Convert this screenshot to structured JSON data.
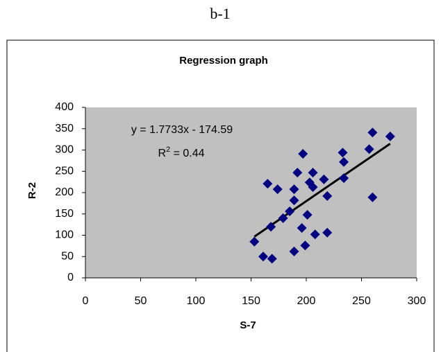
{
  "caption": "b-1",
  "chart_data": {
    "type": "scatter",
    "title": "Regression graph",
    "x_label": "S-7",
    "y_label": "R-2",
    "x": [
      153,
      161,
      165,
      168,
      169,
      174,
      179,
      185,
      189,
      189,
      189,
      192,
      196,
      197,
      199,
      201,
      203,
      206,
      206,
      208,
      216,
      219,
      219,
      233,
      234,
      234,
      257,
      260,
      260,
      276
    ],
    "values": [
      85,
      50,
      221,
      120,
      45,
      208,
      140,
      156,
      182,
      208,
      62,
      247,
      117,
      291,
      76,
      148,
      224,
      213,
      247,
      102,
      231,
      192,
      106,
      294,
      272,
      234,
      302,
      341,
      189,
      332
    ],
    "color": "#000080",
    "xlim": [
      0,
      300
    ],
    "xticks": [
      0,
      50,
      100,
      150,
      200,
      250,
      300
    ],
    "ylim": [
      0,
      400
    ],
    "yticks": [
      0,
      50,
      100,
      150,
      200,
      250,
      300,
      350,
      400
    ],
    "plot_background": "#c0c0c0",
    "trendline": {
      "slope": 1.7733,
      "intercept": -174.59,
      "color": "#000000",
      "equation": "y = 1.7733x - 174.59",
      "r_squared_label": [
        "R",
        "2",
        " = 0.44"
      ]
    }
  }
}
